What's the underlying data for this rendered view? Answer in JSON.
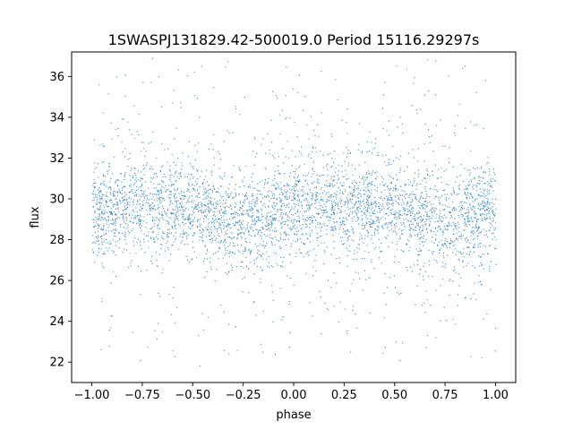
{
  "chart_data": {
    "type": "scatter",
    "title": "1SWASPJ131829.42-500019.0 Period 15116.29297s",
    "xlabel": "phase",
    "ylabel": "flux",
    "xlim": [
      -1.1,
      1.1
    ],
    "ylim": [
      21.0,
      37.2
    ],
    "xticks": [
      -1.0,
      -0.75,
      -0.5,
      -0.25,
      0.0,
      0.25,
      0.5,
      0.75,
      1.0
    ],
    "xtick_labels": [
      "−1.00",
      "−0.75",
      "−0.50",
      "−0.25",
      "0.00",
      "0.25",
      "0.50",
      "0.75",
      "1.00"
    ],
    "yticks": [
      22,
      24,
      26,
      28,
      30,
      32,
      34,
      36
    ],
    "ytick_labels": [
      "22",
      "24",
      "26",
      "28",
      "30",
      "32",
      "34",
      "36"
    ],
    "grid": false,
    "color": "#1f77b4",
    "series": [
      {
        "x_range": [
          -1.0,
          1.0
        ],
        "y_range": [
          21.8,
          37.0
        ],
        "profile": {
          "phase": [
            -1.0,
            -0.75,
            -0.5,
            -0.25,
            0.0,
            0.25,
            0.5,
            0.75,
            1.0
          ],
          "median_flux": [
            29.4,
            29.8,
            29.5,
            28.9,
            29.5,
            29.8,
            29.5,
            28.9,
            29.4
          ],
          "core_spread": [
            1.1,
            1.1,
            1.15,
            1.2,
            1.1,
            1.1,
            1.15,
            1.2,
            1.1
          ]
        }
      }
    ]
  }
}
